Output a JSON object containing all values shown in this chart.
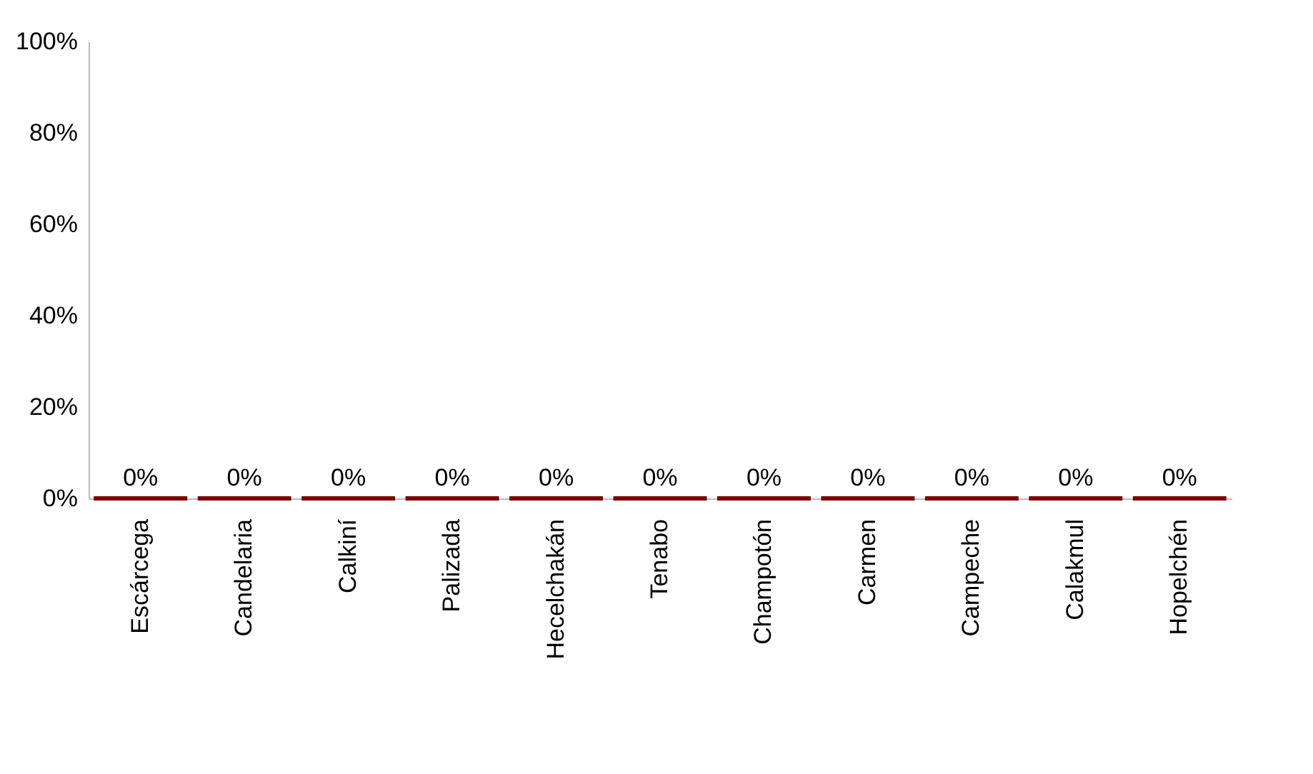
{
  "chart_data": {
    "type": "bar",
    "categories": [
      "Escárcega",
      "Candelaria",
      "Calkiní",
      "Palizada",
      "Hecelchakán",
      "Tenabo",
      "Champotón",
      "Carmen",
      "Campeche",
      "Calakmul",
      "Hopelchén"
    ],
    "values": [
      0,
      0,
      0,
      0,
      0,
      0,
      0,
      0,
      0,
      0,
      0
    ],
    "value_labels": [
      "0%",
      "0%",
      "0%",
      "0%",
      "0%",
      "0%",
      "0%",
      "0%",
      "0%",
      "0%",
      "0%"
    ],
    "color": "#7b0000",
    "ylim": [
      0,
      100
    ],
    "yticks": [
      {
        "value": 0,
        "label": "0%"
      },
      {
        "value": 20,
        "label": "20%"
      },
      {
        "value": 40,
        "label": "40%"
      },
      {
        "value": 60,
        "label": "60%"
      },
      {
        "value": 80,
        "label": "80%"
      },
      {
        "value": 100,
        "label": "100%"
      }
    ],
    "grid": false
  }
}
